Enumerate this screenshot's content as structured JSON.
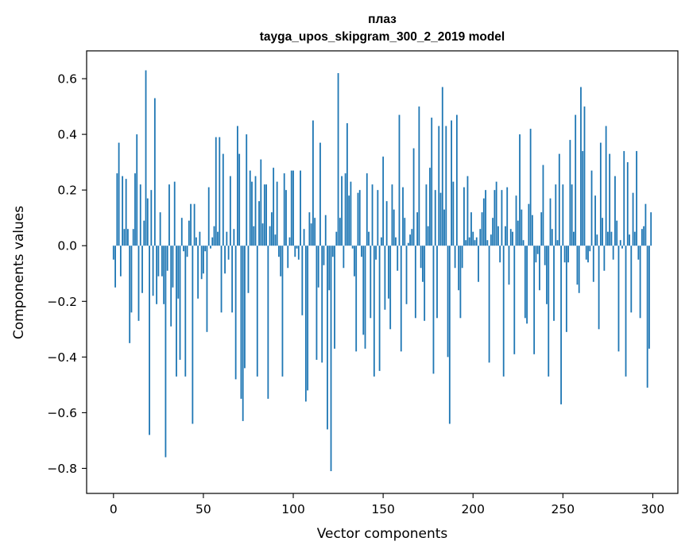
{
  "chart_data": {
    "type": "bar",
    "title_line1": "плаз",
    "title_line2": "tayga_upos_skipgram_300_2_2019 model",
    "xlabel": "Vector components",
    "ylabel": "Components values",
    "xlim": [
      -14.95,
      313.95
    ],
    "ylim": [
      -0.89,
      0.7
    ],
    "xticks": [
      0,
      50,
      100,
      150,
      200,
      250,
      300
    ],
    "xtick_labels": [
      "0",
      "50",
      "100",
      "150",
      "200",
      "250",
      "300"
    ],
    "yticks": [
      -0.8,
      -0.6,
      -0.4,
      -0.2,
      0.0,
      0.2,
      0.4,
      0.6
    ],
    "ytick_labels": [
      "−0.8",
      "−0.6",
      "−0.4",
      "−0.2",
      "0.0",
      "0.2",
      "0.4",
      "0.6"
    ],
    "bar_color": "#1f77b4",
    "values": [
      -0.05,
      -0.15,
      0.26,
      0.37,
      -0.11,
      0.25,
      0.06,
      0.24,
      0.06,
      -0.35,
      -0.24,
      0.06,
      0.26,
      0.4,
      -0.27,
      0.22,
      -0.17,
      0.09,
      0.63,
      0.17,
      -0.68,
      0.2,
      -0.18,
      0.53,
      -0.21,
      -0.11,
      0.12,
      -0.11,
      -0.21,
      -0.76,
      -0.09,
      0.22,
      -0.29,
      -0.15,
      0.23,
      -0.47,
      -0.19,
      -0.41,
      0.1,
      -0.02,
      -0.47,
      -0.04,
      0.09,
      0.15,
      -0.64,
      0.15,
      0.03,
      -0.19,
      0.05,
      -0.12,
      -0.1,
      -0.02,
      -0.31,
      0.21,
      -0.01,
      0.03,
      0.07,
      0.39,
      0.05,
      0.39,
      -0.24,
      0.33,
      -0.1,
      0.05,
      -0.05,
      0.25,
      -0.24,
      0.06,
      -0.48,
      0.43,
      0.33,
      -0.55,
      -0.63,
      -0.44,
      0.4,
      -0.17,
      0.27,
      0.23,
      0.07,
      0.25,
      -0.47,
      0.16,
      0.31,
      0.08,
      0.22,
      0.22,
      -0.55,
      0.07,
      0.12,
      0.28,
      0.04,
      0.23,
      -0.04,
      -0.11,
      -0.47,
      0.26,
      0.2,
      -0.08,
      0.03,
      0.27,
      0.27,
      -0.04,
      -0.01,
      -0.05,
      0.27,
      -0.25,
      0.06,
      -0.56,
      -0.52,
      0.12,
      0.08,
      0.45,
      0.1,
      -0.41,
      -0.15,
      0.37,
      -0.42,
      -0.07,
      0.11,
      -0.66,
      -0.16,
      -0.81,
      -0.04,
      -0.37,
      0.05,
      0.62,
      0.1,
      0.25,
      -0.08,
      0.26,
      0.44,
      0.18,
      0.23,
      -0.01,
      -0.11,
      -0.38,
      0.19,
      0.2,
      -0.04,
      -0.32,
      -0.37,
      0.26,
      0.05,
      -0.26,
      0.22,
      -0.47,
      -0.05,
      0.2,
      -0.45,
      0.03,
      0.32,
      -0.23,
      0.16,
      -0.19,
      -0.3,
      0.22,
      0.13,
      0.03,
      -0.09,
      0.47,
      -0.38,
      0.21,
      0.1,
      -0.21,
      0.01,
      0.04,
      0.06,
      0.35,
      -0.26,
      0.12,
      0.5,
      -0.08,
      -0.13,
      -0.27,
      0.22,
      0.07,
      0.28,
      0.46,
      -0.46,
      0.2,
      -0.26,
      0.43,
      0.19,
      0.57,
      0.13,
      0.43,
      -0.4,
      -0.64,
      0.45,
      0.23,
      -0.08,
      0.47,
      -0.16,
      -0.26,
      -0.08,
      0.21,
      0.02,
      0.25,
      0.03,
      0.12,
      0.05,
      0.02,
      0.03,
      -0.13,
      0.06,
      0.12,
      0.17,
      0.2,
      0.02,
      -0.42,
      0.04,
      0.1,
      0.2,
      0.23,
      0.07,
      -0.06,
      0.2,
      -0.47,
      0.07,
      0.21,
      -0.14,
      0.06,
      0.05,
      -0.39,
      0.18,
      0.09,
      0.4,
      0.13,
      0.02,
      -0.26,
      -0.28,
      0.15,
      0.42,
      0.11,
      -0.39,
      -0.06,
      -0.03,
      -0.16,
      0.12,
      0.29,
      -0.07,
      -0.21,
      -0.47,
      0.17,
      0.06,
      -0.27,
      0.22,
      0.02,
      0.33,
      -0.57,
      0.22,
      -0.06,
      -0.31,
      -0.06,
      0.38,
      0.22,
      0.05,
      0.47,
      -0.14,
      -0.17,
      0.57,
      0.34,
      0.5,
      -0.05,
      -0.06,
      -0.02,
      0.27,
      -0.13,
      0.18,
      0.04,
      -0.3,
      0.37,
      0.1,
      -0.09,
      0.43,
      0.05,
      0.33,
      0.05,
      -0.05,
      0.25,
      0.09,
      -0.38,
      0.02,
      -0.01,
      0.34,
      -0.47,
      0.3,
      0.04,
      -0.24,
      0.19,
      0.05,
      0.34,
      -0.05,
      -0.26,
      0.06,
      0.07,
      0.15,
      -0.51,
      -0.37,
      0.12
    ]
  }
}
